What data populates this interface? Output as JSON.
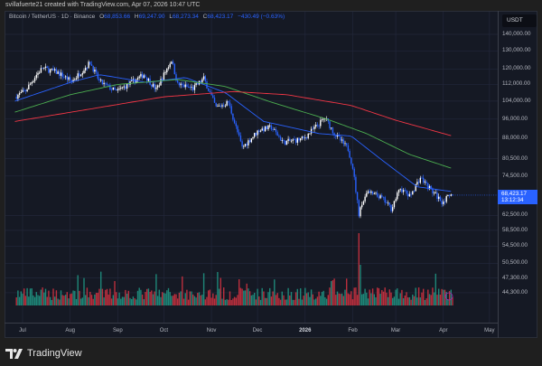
{
  "attribution": "svillafuerte21 created with TradingView.com, Apr 07, 2026 10:47 UTC",
  "legend": {
    "symbol": "Bitcoin / TetherUS · 1D · Binance",
    "open_label": "O",
    "open": "68,853.66",
    "high_label": "H",
    "high": "69,247.90",
    "low_label": "L",
    "low": "68,273.34",
    "close_label": "C",
    "close": "68,423.17",
    "change": "−430.49 (−0.63%)"
  },
  "currency": "USDT",
  "last_price": {
    "price": "68,423.17",
    "countdown": "13:12:34"
  },
  "brand": "TradingView",
  "colors": {
    "up": "#ffffff",
    "down": "#2962ff",
    "ma_fast": "#2962ff",
    "ma_mid": "#4caf50",
    "ma_slow": "#f23645",
    "vol_up": "#22ab94",
    "vol_down": "#f23645",
    "accent": "#2962ff"
  },
  "chart_data": {
    "type": "candlestick",
    "scale": "log",
    "grid": true,
    "ylim": [
      42000,
      150000
    ],
    "y_ticks": [
      "140,000.00",
      "130,000.00",
      "120,000.00",
      "112,000.00",
      "104,000.00",
      "96,000.00",
      "88,000.00",
      "80,500.00",
      "74,500.00",
      "62,500.00",
      "58,500.00",
      "54,500.00",
      "50,500.00",
      "47,300.00",
      "44,300.00"
    ],
    "x_ticks": [
      {
        "label": "Jul",
        "date": "2025-07-01"
      },
      {
        "label": "Aug",
        "date": "2025-08-01"
      },
      {
        "label": "Sep",
        "date": "2025-09-01"
      },
      {
        "label": "Oct",
        "date": "2025-10-01"
      },
      {
        "label": "Nov",
        "date": "2025-11-01"
      },
      {
        "label": "Dec",
        "date": "2025-12-01"
      },
      {
        "label": "2026",
        "date": "2026-01-01",
        "bold": true
      },
      {
        "label": "Feb",
        "date": "2026-02-01"
      },
      {
        "label": "Mar",
        "date": "2026-03-01"
      },
      {
        "label": "Apr",
        "date": "2026-04-01"
      },
      {
        "label": "May",
        "date": "2026-05-01"
      }
    ],
    "price_path": [
      [
        "2025-06-26",
        106000
      ],
      [
        "2025-07-03",
        109000
      ],
      [
        "2025-07-10",
        117000
      ],
      [
        "2025-07-14",
        120500
      ],
      [
        "2025-07-24",
        118000
      ],
      [
        "2025-08-02",
        113500
      ],
      [
        "2025-08-14",
        123500
      ],
      [
        "2025-08-20",
        113500
      ],
      [
        "2025-08-31",
        108500
      ],
      [
        "2025-09-10",
        113000
      ],
      [
        "2025-09-18",
        117000
      ],
      [
        "2025-09-26",
        109500
      ],
      [
        "2025-10-06",
        125000
      ],
      [
        "2025-10-10",
        112000
      ],
      [
        "2025-10-20",
        110000
      ],
      [
        "2025-10-27",
        115000
      ],
      [
        "2025-11-04",
        101000
      ],
      [
        "2025-11-12",
        103500
      ],
      [
        "2025-11-21",
        84500
      ],
      [
        "2025-12-02",
        91500
      ],
      [
        "2025-12-10",
        92500
      ],
      [
        "2025-12-18",
        86500
      ],
      [
        "2025-12-31",
        88000
      ],
      [
        "2026-01-14",
        96500
      ],
      [
        "2026-01-20",
        90000
      ],
      [
        "2026-01-29",
        84000
      ],
      [
        "2026-02-01",
        77500
      ],
      [
        "2026-02-05",
        63000
      ],
      [
        "2026-02-10",
        69500
      ],
      [
        "2026-02-20",
        67500
      ],
      [
        "2026-02-26",
        64500
      ],
      [
        "2026-03-04",
        70500
      ],
      [
        "2026-03-10",
        68000
      ],
      [
        "2026-03-17",
        74000
      ],
      [
        "2026-03-24",
        70000
      ],
      [
        "2026-03-31",
        66500
      ],
      [
        "2026-04-07",
        68423.17
      ]
    ],
    "moving_averages": [
      {
        "color": "#2962ff",
        "points": [
          [
            "2025-06-26",
            104000
          ],
          [
            "2025-08-01",
            113000
          ],
          [
            "2025-08-20",
            117000
          ],
          [
            "2025-09-20",
            113000
          ],
          [
            "2025-10-15",
            115500
          ],
          [
            "2025-11-10",
            108000
          ],
          [
            "2025-12-05",
            95000
          ],
          [
            "2026-01-10",
            90000
          ],
          [
            "2026-01-31",
            89000
          ],
          [
            "2026-02-20",
            80000
          ],
          [
            "2026-03-15",
            71000
          ],
          [
            "2026-04-07",
            69500
          ]
        ]
      },
      {
        "color": "#4caf50",
        "points": [
          [
            "2025-06-26",
            99000
          ],
          [
            "2025-08-01",
            107000
          ],
          [
            "2025-09-01",
            112000
          ],
          [
            "2025-10-10",
            114500
          ],
          [
            "2025-11-10",
            111000
          ],
          [
            "2025-12-10",
            103500
          ],
          [
            "2026-01-15",
            96000
          ],
          [
            "2026-02-10",
            90000
          ],
          [
            "2026-03-10",
            82000
          ],
          [
            "2026-04-07",
            77000
          ]
        ]
      },
      {
        "color": "#f23645",
        "points": [
          [
            "2025-06-26",
            95000
          ],
          [
            "2025-08-15",
            100500
          ],
          [
            "2025-10-01",
            106000
          ],
          [
            "2025-11-15",
            108500
          ],
          [
            "2025-12-20",
            107000
          ],
          [
            "2026-01-31",
            102000
          ],
          [
            "2026-03-01",
            95500
          ],
          [
            "2026-04-07",
            89000
          ]
        ]
      }
    ]
  }
}
